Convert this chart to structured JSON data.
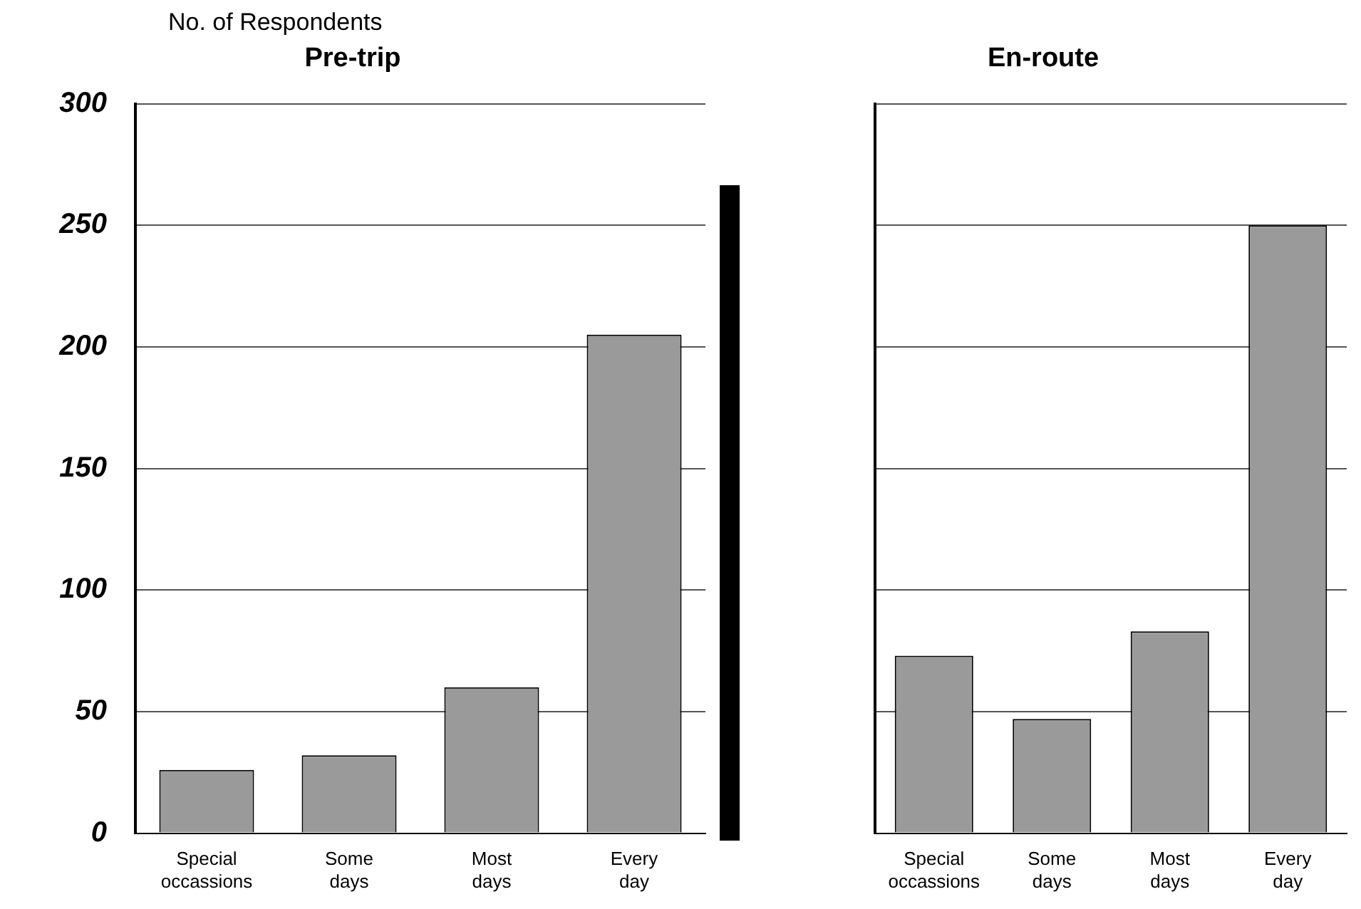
{
  "chart_data": [
    {
      "type": "bar",
      "title": "Pre-trip",
      "ylabel": "No. of Respondents",
      "categories": [
        "Special occassions",
        "Some days",
        "Most days",
        "Every day"
      ],
      "values": [
        26,
        32,
        60,
        205
      ],
      "color": "#9a9a9a",
      "ylim": [
        0,
        300
      ],
      "yticks": [
        0,
        50,
        100,
        150,
        200,
        250,
        300
      ],
      "grid": "y"
    },
    {
      "type": "bar",
      "title": "En-route",
      "categories": [
        "Special occassions",
        "Some days",
        "Most days",
        "Every day"
      ],
      "values": [
        73,
        47,
        83,
        250
      ],
      "color": "#9a9a9a",
      "ylim": [
        0,
        300
      ],
      "yticks": [
        0,
        50,
        100,
        150,
        200,
        250,
        300
      ],
      "grid": "y",
      "tick_labels": "x"
    }
  ]
}
